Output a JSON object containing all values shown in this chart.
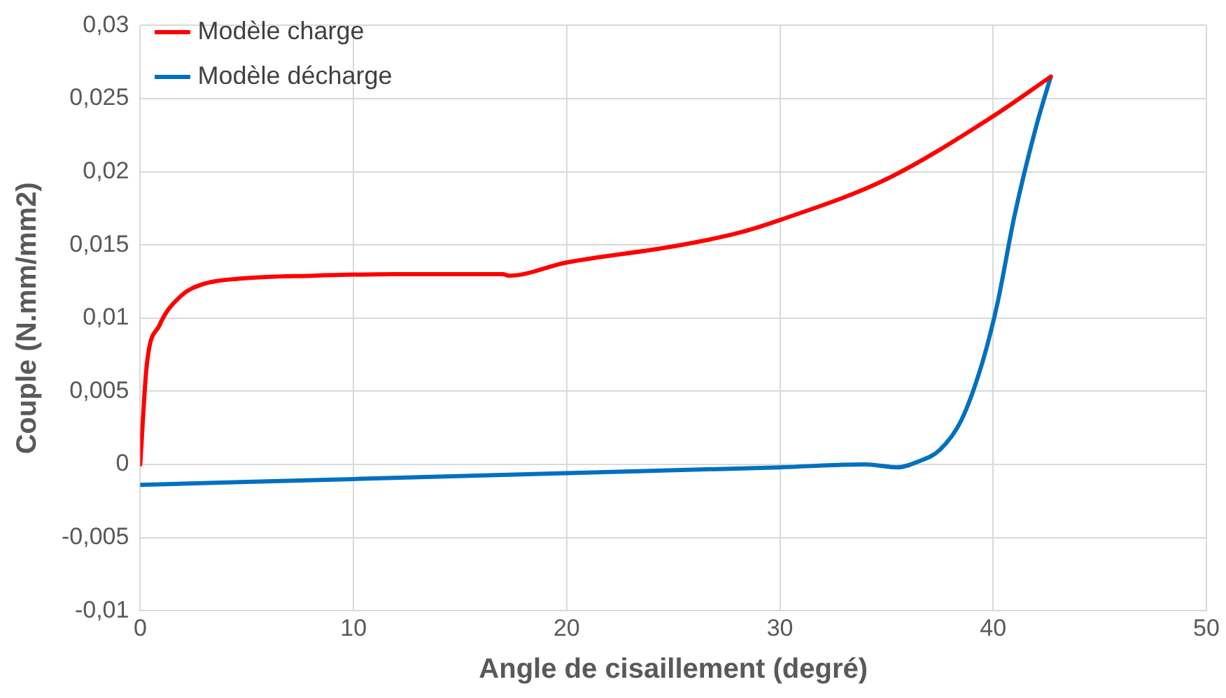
{
  "chart_data": {
    "type": "line",
    "xlabel": "Angle de cisaillement (degré)",
    "ylabel": "Couple (N.mm/mm2)",
    "xlim": [
      0,
      50
    ],
    "xticks": [
      0,
      10,
      20,
      30,
      40,
      50
    ],
    "ylim": [
      -0.01,
      0.03
    ],
    "yticks": [
      {
        "value": -0.01,
        "label": "-0,01"
      },
      {
        "value": -0.005,
        "label": "-0,005"
      },
      {
        "value": 0,
        "label": "0"
      },
      {
        "value": 0.005,
        "label": "0,005"
      },
      {
        "value": 0.01,
        "label": "0,01"
      },
      {
        "value": 0.015,
        "label": "0,015"
      },
      {
        "value": 0.02,
        "label": "0,02"
      },
      {
        "value": 0.025,
        "label": "0,025"
      },
      {
        "value": 0.03,
        "label": "0,03"
      }
    ],
    "grid": true,
    "legend": "top left",
    "marker": "none",
    "line_style": "solid",
    "series": [
      {
        "name": "Modèle charge",
        "color": "#ff0000",
        "x": [
          0,
          0.3,
          0.9,
          1.9,
          2.9,
          4.7,
          8.1,
          12,
          17,
          17.3,
          20,
          25,
          28,
          30,
          35,
          40,
          42.7
        ],
        "values": [
          0,
          0.0067,
          0.0095,
          0.0115,
          0.0123,
          0.0127,
          0.0129,
          0.013,
          0.013,
          0.0129,
          0.0138,
          0.0149,
          0.0158,
          0.0167,
          0.0195,
          0.0238,
          0.0265
        ]
      },
      {
        "name": "Modèle décharge",
        "color": "#0070c0",
        "x": [
          0,
          10,
          20,
          30,
          34,
          35.5,
          36.5,
          37.5,
          38.5,
          39.5,
          40.2,
          41,
          42,
          42.7
        ],
        "values": [
          -0.0014,
          -0.001,
          -0.0006,
          -0.0002,
          0,
          -0.0002,
          0.0002,
          0.001,
          0.003,
          0.007,
          0.011,
          0.017,
          0.023,
          0.0265
        ]
      }
    ]
  }
}
